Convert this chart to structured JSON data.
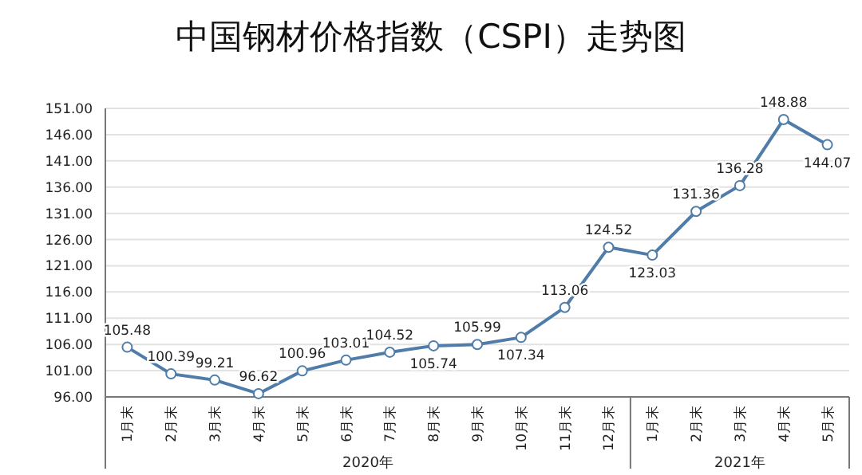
{
  "chart_data": {
    "type": "line",
    "title": "中国钢材价格指数（CSPI）走势图",
    "categories": [
      "1月末",
      "2月末",
      "3月末",
      "4月末",
      "5月末",
      "6月末",
      "7月末",
      "8月末",
      "9月末",
      "10月末",
      "11月末",
      "12月末",
      "1月末",
      "2月末",
      "3月末",
      "4月末",
      "5月末"
    ],
    "series": [
      {
        "color": "#4f7ca8",
        "values": [
          105.48,
          100.39,
          99.21,
          96.62,
          100.96,
          103.01,
          104.52,
          105.74,
          105.99,
          107.34,
          113.06,
          124.52,
          123.03,
          131.36,
          136.28,
          148.88,
          144.07
        ]
      }
    ],
    "ylim": [
      96,
      151
    ],
    "yticks": [
      {
        "value": 96,
        "label": "96.00"
      },
      {
        "value": 101,
        "label": "101.00"
      },
      {
        "value": 106,
        "label": "106.00"
      },
      {
        "value": 111,
        "label": "111.00"
      },
      {
        "value": 116,
        "label": "116.00"
      },
      {
        "value": 121,
        "label": "121.00"
      },
      {
        "value": 126,
        "label": "126.00"
      },
      {
        "value": 131,
        "label": "131.00"
      },
      {
        "value": 136,
        "label": "136.00"
      },
      {
        "value": 141,
        "label": "141.00"
      },
      {
        "value": 146,
        "label": "146.00"
      },
      {
        "value": 151,
        "label": "151.00"
      }
    ],
    "grid": "y",
    "marker": "circle",
    "data_labels": true,
    "annotations": [
      "2020年",
      "2021年"
    ]
  }
}
